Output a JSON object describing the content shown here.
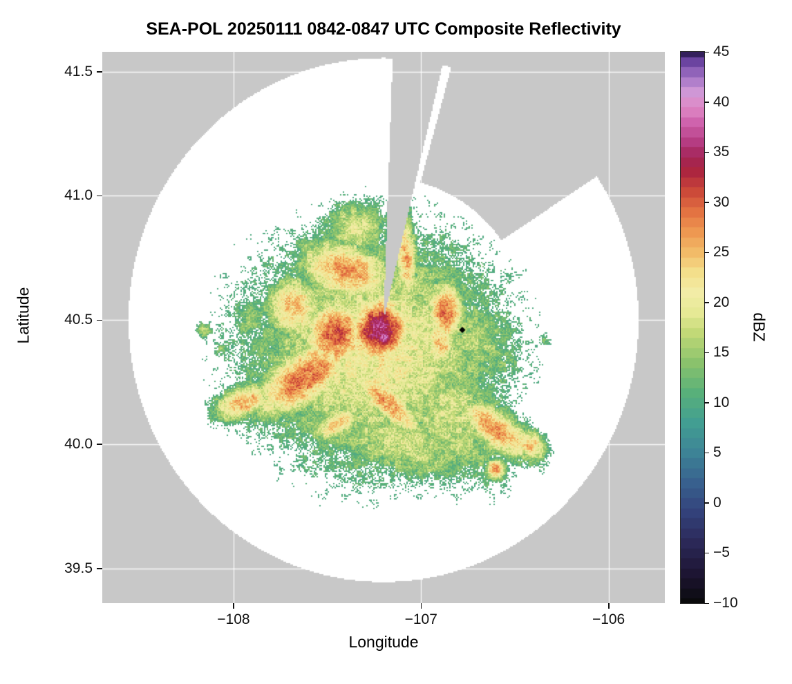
{
  "figure": {
    "title": "SEA-POL 20250111 0842-0847 UTC Composite Reflectivity"
  },
  "axes": {
    "xlabel": "Longitude",
    "ylabel": "Latitude",
    "xticks": [
      {
        "v": -108,
        "label": "−108"
      },
      {
        "v": -107,
        "label": "−107"
      },
      {
        "v": -106,
        "label": "−106"
      }
    ],
    "yticks": [
      {
        "v": 39.5,
        "label": "39.5"
      },
      {
        "v": 40.0,
        "label": "40.0"
      },
      {
        "v": 40.5,
        "label": "40.5"
      },
      {
        "v": 41.0,
        "label": "41.0"
      },
      {
        "v": 41.5,
        "label": "41.5"
      }
    ]
  },
  "colorbar": {
    "label": "dBZ",
    "vmin": -10,
    "vmax": 45,
    "ticks": [
      {
        "v": 45,
        "label": "45"
      },
      {
        "v": 40,
        "label": "40"
      },
      {
        "v": 35,
        "label": "35"
      },
      {
        "v": 30,
        "label": "30"
      },
      {
        "v": 25,
        "label": "25"
      },
      {
        "v": 20,
        "label": "20"
      },
      {
        "v": 15,
        "label": "15"
      },
      {
        "v": 10,
        "label": "10"
      },
      {
        "v": 5,
        "label": "5"
      },
      {
        "v": 0,
        "label": "0"
      },
      {
        "v": -5,
        "label": "−5"
      },
      {
        "v": -10,
        "label": "−10"
      }
    ]
  },
  "chart_data": {
    "type": "heatmap",
    "title": "SEA-POL 20250111 0842-0847 UTC Composite Reflectivity",
    "xlabel": "Longitude",
    "ylabel": "Latitude",
    "xlim": [
      -108.7,
      -105.7
    ],
    "ylim": [
      39.36,
      41.58
    ],
    "grid": true,
    "value_label": "dBZ",
    "value_range": [
      -10,
      45
    ],
    "outside_color": "#c8c8c8",
    "inside_color": "#ffffff",
    "grid_color": "#ffffff",
    "radar": {
      "center": [
        -107.2,
        40.5
      ],
      "radius_deg_lon": 1.36,
      "radius_deg_lat": 1.055
    },
    "blocked_sectors": [
      {
        "az_start": 2,
        "az_end": 13,
        "r_start_frac": 0.0
      },
      {
        "az_start": 15,
        "az_end": 56,
        "r_start_frac": 0.55
      }
    ],
    "marker": {
      "lon": -106.78,
      "lat": 40.46,
      "color": "#000000",
      "shape": "diamond"
    },
    "colormap_stops": [
      [
        -10,
        "#0a0a0c"
      ],
      [
        -7,
        "#1d1533"
      ],
      [
        -4,
        "#2b2857"
      ],
      [
        -1,
        "#33417a"
      ],
      [
        2,
        "#38608e"
      ],
      [
        5,
        "#3d8396"
      ],
      [
        8,
        "#429e92"
      ],
      [
        11,
        "#58b07a"
      ],
      [
        14,
        "#8ac26c"
      ],
      [
        17,
        "#c2d977"
      ],
      [
        19,
        "#e6e995"
      ],
      [
        21,
        "#f2eca6"
      ],
      [
        23,
        "#f3df8b"
      ],
      [
        25,
        "#f2bb68"
      ],
      [
        27,
        "#ee9851"
      ],
      [
        29,
        "#e37342"
      ],
      [
        31,
        "#cc4a39"
      ],
      [
        33,
        "#ad263f"
      ],
      [
        34.5,
        "#a32456"
      ],
      [
        36,
        "#b53c82"
      ],
      [
        38,
        "#cf63ad"
      ],
      [
        39.5,
        "#e08ac6"
      ],
      [
        41,
        "#cf97d6"
      ],
      [
        42.5,
        "#a273c6"
      ],
      [
        44,
        "#6b44a0"
      ],
      [
        45,
        "#34205c"
      ]
    ],
    "echo_threshold_dbz": 9.5,
    "echo_blobs": [
      [
        -107.22,
        40.46,
        0.13,
        0.11,
        0,
        36
      ],
      [
        -107.2,
        40.43,
        0.05,
        0.04,
        0,
        39
      ],
      [
        -107.45,
        40.44,
        0.15,
        0.12,
        0,
        30
      ],
      [
        -107.62,
        40.27,
        0.25,
        0.1,
        25,
        29
      ],
      [
        -107.95,
        40.17,
        0.14,
        0.06,
        15,
        26
      ],
      [
        -107.4,
        40.7,
        0.22,
        0.1,
        -10,
        27
      ],
      [
        -107.68,
        40.55,
        0.13,
        0.11,
        0,
        25
      ],
      [
        -107.08,
        40.75,
        0.05,
        0.16,
        5,
        26
      ],
      [
        -106.87,
        40.53,
        0.09,
        0.11,
        0,
        28
      ],
      [
        -106.9,
        40.41,
        0.08,
        0.09,
        0,
        25
      ],
      [
        -106.56,
        40.34,
        0.1,
        0.1,
        0,
        13
      ],
      [
        -106.6,
        40.06,
        0.2,
        0.07,
        -25,
        27
      ],
      [
        -106.42,
        40.0,
        0.08,
        0.05,
        -20,
        25
      ],
      [
        -107.18,
        40.17,
        0.2,
        0.06,
        -35,
        27
      ],
      [
        -107.45,
        40.08,
        0.12,
        0.05,
        20,
        24
      ],
      [
        -107.25,
        40.38,
        0.58,
        0.4,
        0,
        21
      ],
      [
        -106.85,
        40.12,
        0.33,
        0.22,
        -25,
        18
      ],
      [
        -106.72,
        40.42,
        0.22,
        0.16,
        0,
        16
      ],
      [
        -107.1,
        40.0,
        0.4,
        0.12,
        -10,
        18
      ],
      [
        -107.35,
        40.87,
        0.16,
        0.1,
        0,
        19
      ],
      [
        -107.92,
        40.5,
        0.1,
        0.09,
        0,
        14
      ],
      [
        -108.16,
        40.46,
        0.04,
        0.03,
        0,
        17
      ],
      [
        -108.07,
        40.38,
        0.04,
        0.03,
        0,
        14
      ],
      [
        -106.6,
        39.9,
        0.05,
        0.04,
        0,
        26
      ],
      [
        -107.35,
        39.92,
        0.05,
        0.03,
        0,
        15
      ],
      [
        -106.34,
        40.42,
        0.03,
        0.03,
        0,
        13
      ]
    ]
  }
}
